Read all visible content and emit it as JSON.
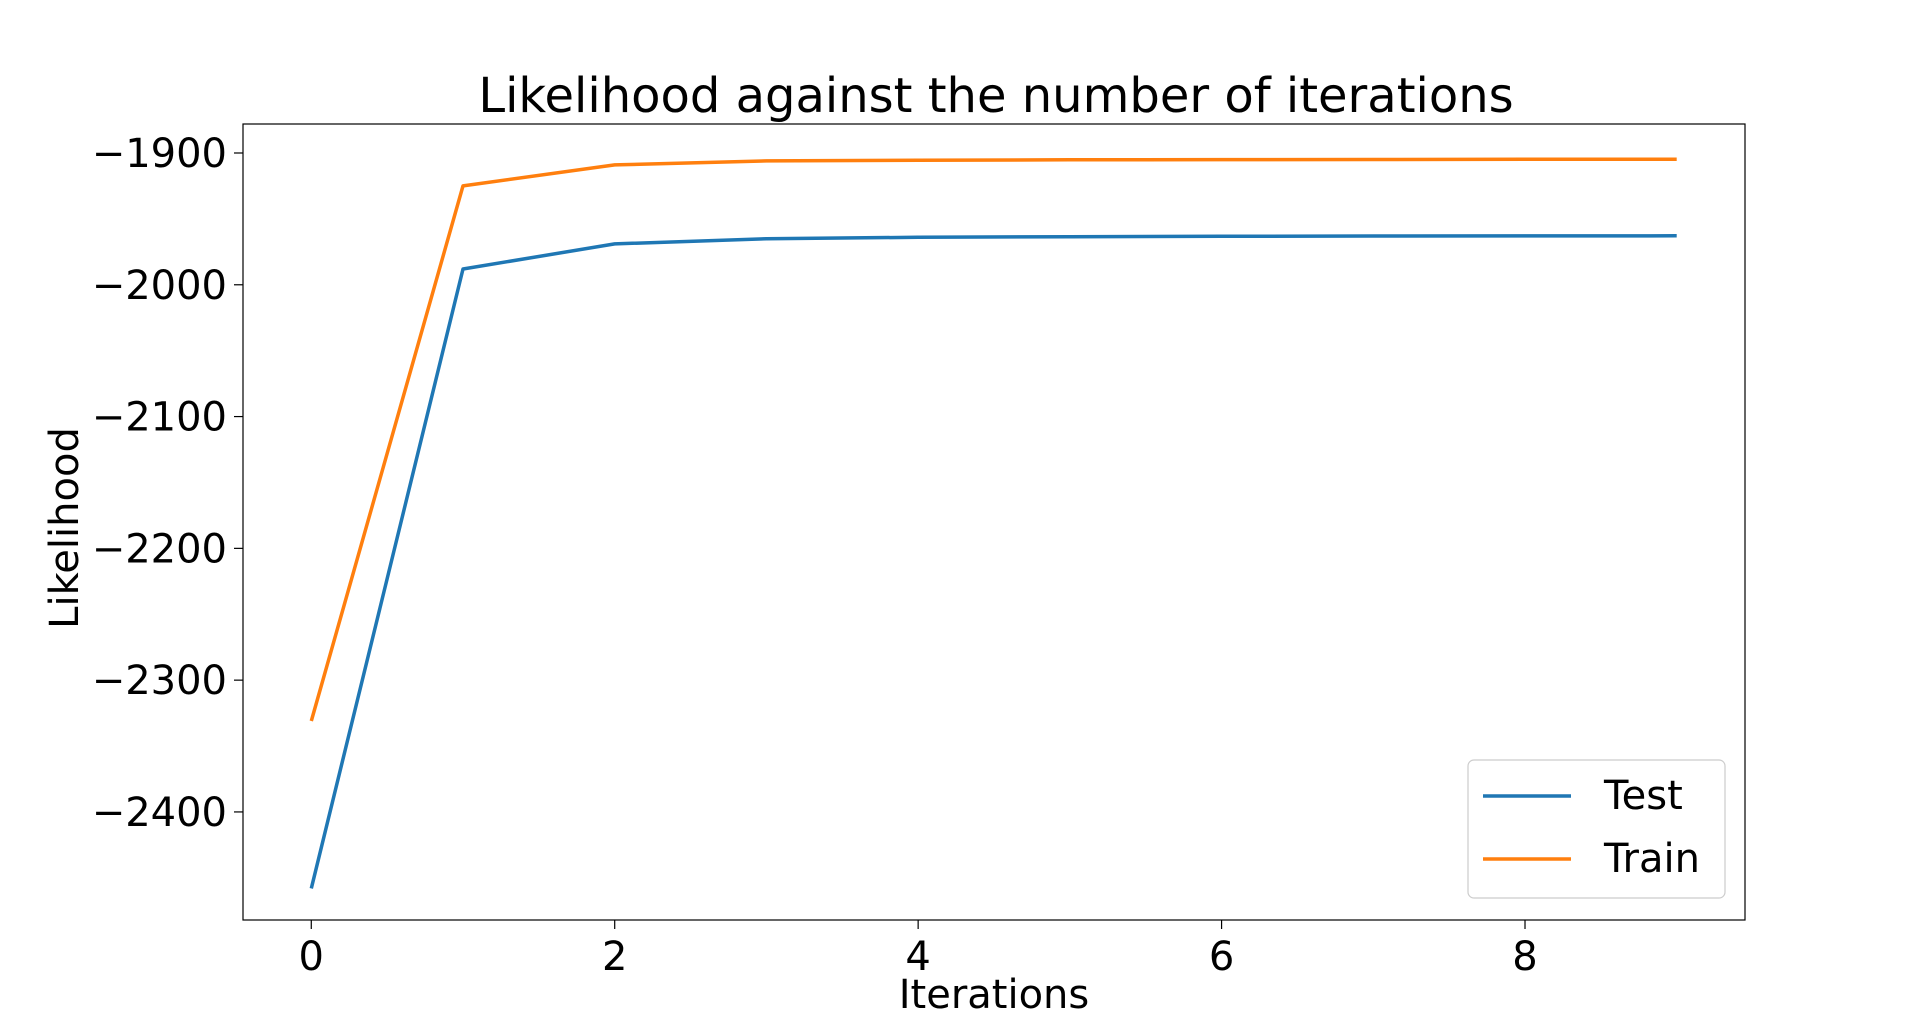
{
  "chart_data": {
    "type": "line",
    "title": "Likelihood against the number of iterations",
    "xlabel": "Iterations",
    "ylabel": "Likelihood",
    "x": [
      0,
      1,
      2,
      3,
      4,
      5,
      6,
      7,
      8,
      9
    ],
    "xlim": [
      -0.45,
      9.45
    ],
    "ylim": [
      -2482,
      -1878
    ],
    "xticks": [
      0,
      2,
      4,
      6,
      8
    ],
    "yticks": [
      -1900,
      -2000,
      -2100,
      -2200,
      -2300,
      -2400
    ],
    "xtick_labels": [
      "0",
      "2",
      "4",
      "6",
      "8"
    ],
    "ytick_labels": [
      "−1900",
      "−2000",
      "−2100",
      "−2200",
      "−2300",
      "−2400"
    ],
    "grid": false,
    "legend_position": "lower-right",
    "series": [
      {
        "name": "Test",
        "color": "#1f77b4",
        "values": [
          -2458,
          -1988,
          -1969,
          -1965,
          -1964,
          -1963.5,
          -1963.2,
          -1963,
          -1962.9,
          -1962.8
        ]
      },
      {
        "name": "Train",
        "color": "#ff7f0e",
        "values": [
          -2331,
          -1925,
          -1909,
          -1906,
          -1905.5,
          -1905.2,
          -1905,
          -1904.9,
          -1904.8,
          -1904.8
        ]
      }
    ]
  }
}
